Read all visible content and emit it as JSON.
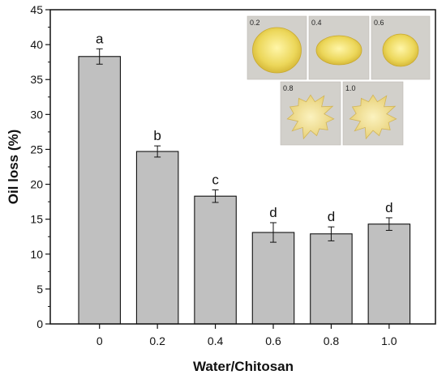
{
  "chart_data": {
    "type": "bar",
    "xlabel": "Water/Chitosan",
    "ylabel": "Oil loss (%)",
    "categories": [
      "0",
      "0.2",
      "0.4",
      "0.6",
      "0.8",
      "1.0"
    ],
    "values": [
      38.3,
      24.7,
      18.3,
      13.1,
      12.9,
      14.3
    ],
    "errors": [
      1.1,
      0.8,
      0.9,
      1.4,
      1.0,
      0.9
    ],
    "significance_labels": [
      "a",
      "b",
      "c",
      "d",
      "d",
      "d"
    ],
    "ylim": [
      0,
      45
    ],
    "yticks": [
      "0",
      "5",
      "10",
      "15",
      "20",
      "25",
      "30",
      "35",
      "40",
      "45"
    ],
    "grid": false,
    "bar_color": "#c0c0c0"
  },
  "inset": {
    "samples": [
      {
        "label": "0.2",
        "kind": "liquid"
      },
      {
        "label": "0.4",
        "kind": "liquid"
      },
      {
        "label": "0.6",
        "kind": "liquid"
      },
      {
        "label": "0.8",
        "kind": "solid"
      },
      {
        "label": "1.0",
        "kind": "solid"
      }
    ]
  }
}
